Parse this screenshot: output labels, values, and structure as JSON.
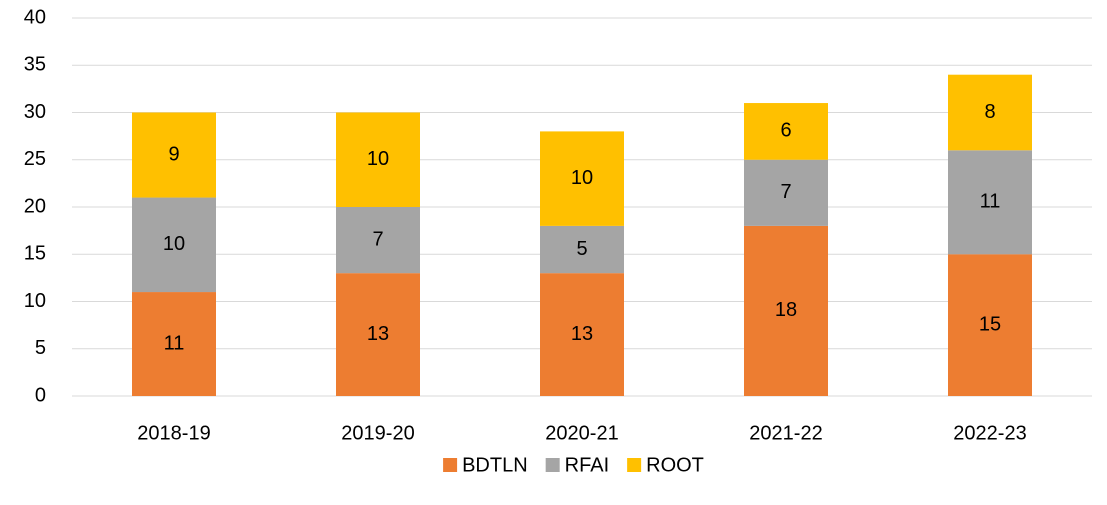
{
  "chart_data": {
    "type": "stacked_bar",
    "categories": [
      "2018-19",
      "2019-20",
      "2020-21",
      "2021-22",
      "2022-23"
    ],
    "series": [
      {
        "name": "BDTLN",
        "color": "#ED7D31",
        "values": [
          11,
          13,
          13,
          18,
          15
        ]
      },
      {
        "name": "RFAI",
        "color": "#A5A5A5",
        "values": [
          10,
          7,
          5,
          7,
          11
        ]
      },
      {
        "name": "ROOT",
        "color": "#FFC000",
        "values": [
          9,
          10,
          10,
          6,
          8
        ]
      }
    ],
    "ylim": [
      0,
      40
    ],
    "yticks": [
      0,
      5,
      10,
      15,
      20,
      25,
      30,
      35,
      40
    ],
    "grid": true,
    "legend": "bottom"
  }
}
